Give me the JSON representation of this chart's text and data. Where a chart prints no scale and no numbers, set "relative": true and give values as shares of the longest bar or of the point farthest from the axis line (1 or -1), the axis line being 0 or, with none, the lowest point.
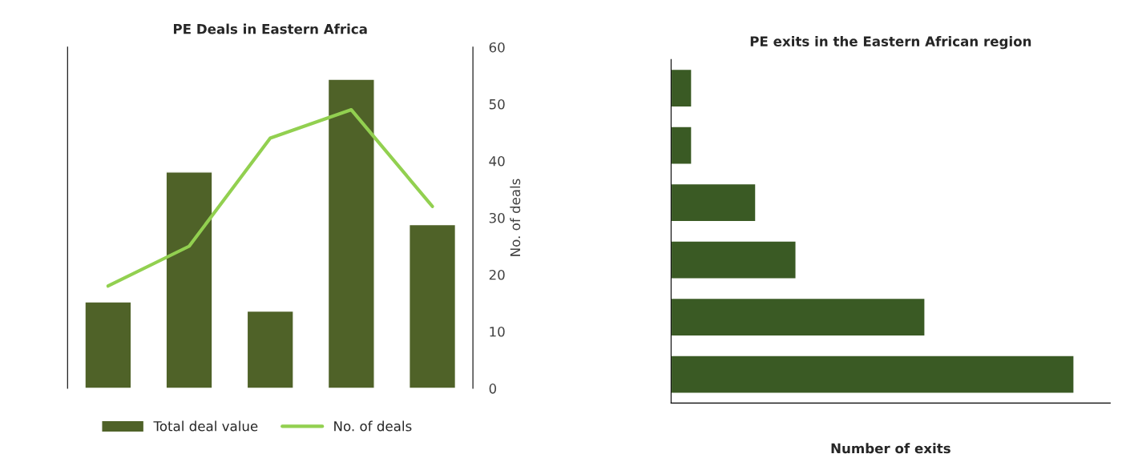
{
  "chart_data": [
    {
      "type": "bar",
      "title": "PE Deals in Eastern Africa",
      "relative": true,
      "categories": [
        null,
        null,
        null,
        null,
        null
      ],
      "series": [
        {
          "name": "Total deal value",
          "color": "#4f6228",
          "values": [
            0.28,
            0.7,
            0.25,
            1.0,
            0.53
          ]
        }
      ],
      "legend": "bottom left"
    },
    {
      "type": "line",
      "categories": [
        null,
        null,
        null,
        null,
        null
      ],
      "series": [
        {
          "name": "No. of deals",
          "color": "#92d050",
          "values": [
            18,
            25,
            44,
            49,
            32
          ]
        }
      ],
      "ylabel": "No. of deals",
      "ylim": [
        0,
        60
      ],
      "yticks": [
        0,
        10,
        20,
        30,
        40,
        50,
        60
      ],
      "legend": "bottom right"
    },
    {
      "type": "bar",
      "orientation": "horizontal",
      "relative": true,
      "title": "PE exits in the Eastern African region",
      "xlabel": "Number of exits",
      "categories": [
        null,
        null,
        null,
        null,
        null,
        null
      ],
      "series": [
        {
          "color": "#3a5a24",
          "values": [
            0.051,
            0.051,
            0.21,
            0.31,
            0.63,
            1.0
          ]
        }
      ]
    }
  ]
}
